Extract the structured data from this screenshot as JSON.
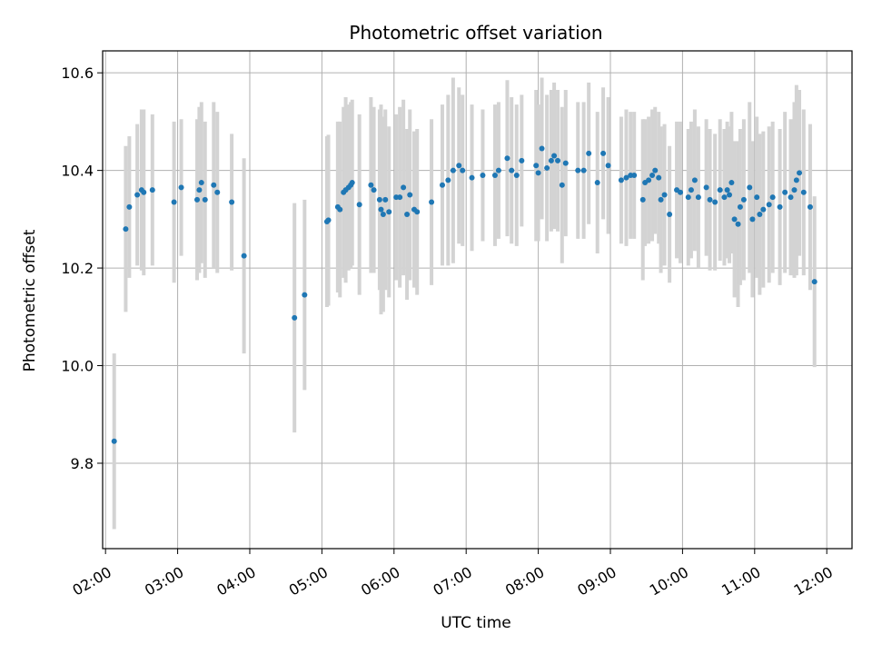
{
  "chart_data": {
    "type": "scatter",
    "title": "Photometric offset variation",
    "xlabel": "UTC time",
    "ylabel": "Photometric offset",
    "x_unit": "hours UTC",
    "xlim": [
      1.96,
      12.35
    ],
    "ylim": [
      9.625,
      10.645
    ],
    "x_ticks": [
      2,
      3,
      4,
      5,
      6,
      7,
      8,
      9,
      10,
      11,
      12
    ],
    "x_tick_labels": [
      "02:00",
      "03:00",
      "04:00",
      "05:00",
      "06:00",
      "07:00",
      "08:00",
      "09:00",
      "10:00",
      "11:00",
      "12:00"
    ],
    "y_ticks": [
      9.8,
      10.0,
      10.2,
      10.4,
      10.6
    ],
    "y_tick_labels": [
      "9.8",
      "10.0",
      "10.2",
      "10.4",
      "10.6"
    ],
    "grid": true,
    "marker_color": "#1f77b4",
    "errorbar_color": "#d3d3d3",
    "series": [
      {
        "x": [
          2.12,
          2.28,
          2.33,
          2.44,
          2.5,
          2.53,
          2.65,
          2.95,
          3.05,
          3.27,
          3.3,
          3.33,
          3.38,
          3.5,
          3.55,
          3.75,
          3.92,
          4.62,
          4.76,
          5.07,
          5.09,
          5.22,
          5.25,
          5.3,
          5.33,
          5.37,
          5.4,
          5.42,
          5.52,
          5.68,
          5.72,
          5.8,
          5.82,
          5.85,
          5.88,
          5.93,
          6.03,
          6.08,
          6.13,
          6.18,
          6.22,
          6.28,
          6.32,
          6.52,
          6.67,
          6.75,
          6.82,
          6.9,
          6.95,
          7.08,
          7.23,
          7.4,
          7.45,
          7.57,
          7.63,
          7.7,
          7.77,
          7.97,
          8.0,
          8.05,
          8.12,
          8.18,
          8.22,
          8.27,
          8.33,
          8.38,
          8.55,
          8.63,
          8.7,
          8.82,
          8.9,
          8.97,
          9.15,
          9.22,
          9.28,
          9.33,
          9.45,
          9.48,
          9.53,
          9.58,
          9.62,
          9.67,
          9.7,
          9.75,
          9.82,
          9.92,
          9.97,
          10.08,
          10.12,
          10.17,
          10.22,
          10.33,
          10.38,
          10.45,
          10.52,
          10.58,
          10.62,
          10.65,
          10.68,
          10.72,
          10.77,
          10.8,
          10.85,
          10.93,
          10.97,
          11.03,
          11.07,
          11.12,
          11.2,
          11.25,
          11.35,
          11.42,
          11.5,
          11.55,
          11.58,
          11.62,
          11.68,
          11.77,
          11.83
        ],
        "y": [
          9.845,
          10.28,
          10.325,
          10.35,
          10.36,
          10.355,
          10.36,
          10.335,
          10.365,
          10.34,
          10.36,
          10.375,
          10.34,
          10.37,
          10.355,
          10.335,
          10.225,
          10.098,
          10.145,
          10.295,
          10.298,
          10.325,
          10.32,
          10.355,
          10.36,
          10.365,
          10.37,
          10.375,
          10.33,
          10.37,
          10.36,
          10.34,
          10.32,
          10.31,
          10.34,
          10.315,
          10.345,
          10.345,
          10.365,
          10.31,
          10.35,
          10.32,
          10.315,
          10.335,
          10.37,
          10.38,
          10.4,
          10.41,
          10.4,
          10.385,
          10.39,
          10.39,
          10.4,
          10.425,
          10.4,
          10.39,
          10.42,
          10.41,
          10.395,
          10.445,
          10.405,
          10.42,
          10.43,
          10.42,
          10.37,
          10.415,
          10.4,
          10.4,
          10.435,
          10.375,
          10.435,
          10.41,
          10.38,
          10.385,
          10.39,
          10.39,
          10.34,
          10.375,
          10.38,
          10.39,
          10.4,
          10.385,
          10.34,
          10.35,
          10.31,
          10.36,
          10.355,
          10.345,
          10.36,
          10.38,
          10.345,
          10.365,
          10.34,
          10.335,
          10.36,
          10.345,
          10.36,
          10.35,
          10.375,
          10.3,
          10.29,
          10.325,
          10.34,
          10.365,
          10.3,
          10.345,
          10.31,
          10.32,
          10.33,
          10.345,
          10.325,
          10.355,
          10.345,
          10.36,
          10.38,
          10.395,
          10.355,
          10.325,
          10.172
        ],
        "yerr": [
          0.18,
          0.17,
          0.145,
          0.145,
          0.165,
          0.17,
          0.155,
          0.165,
          0.14,
          0.165,
          0.17,
          0.165,
          0.16,
          0.17,
          0.165,
          0.14,
          0.2,
          0.235,
          0.195,
          0.175,
          0.175,
          0.175,
          0.18,
          0.175,
          0.19,
          0.17,
          0.17,
          0.17,
          0.185,
          0.18,
          0.17,
          0.185,
          0.215,
          0.2,
          0.185,
          0.175,
          0.17,
          0.185,
          0.18,
          0.175,
          0.175,
          0.16,
          0.17,
          0.17,
          0.165,
          0.175,
          0.19,
          0.16,
          0.155,
          0.15,
          0.135,
          0.145,
          0.14,
          0.16,
          0.15,
          0.145,
          0.135,
          0.155,
          0.14,
          0.145,
          0.15,
          0.145,
          0.15,
          0.145,
          0.16,
          0.15,
          0.14,
          0.14,
          0.145,
          0.145,
          0.135,
          0.14,
          0.13,
          0.14,
          0.13,
          0.13,
          0.165,
          0.13,
          0.13,
          0.135,
          0.13,
          0.135,
          0.15,
          0.145,
          0.14,
          0.14,
          0.145,
          0.14,
          0.14,
          0.145,
          0.145,
          0.14,
          0.145,
          0.14,
          0.145,
          0.14,
          0.14,
          0.14,
          0.145,
          0.16,
          0.17,
          0.16,
          0.165,
          0.175,
          0.16,
          0.165,
          0.165,
          0.16,
          0.16,
          0.155,
          0.16,
          0.165,
          0.16,
          0.18,
          0.195,
          0.17,
          0.17,
          0.17,
          0.175
        ]
      }
    ]
  }
}
